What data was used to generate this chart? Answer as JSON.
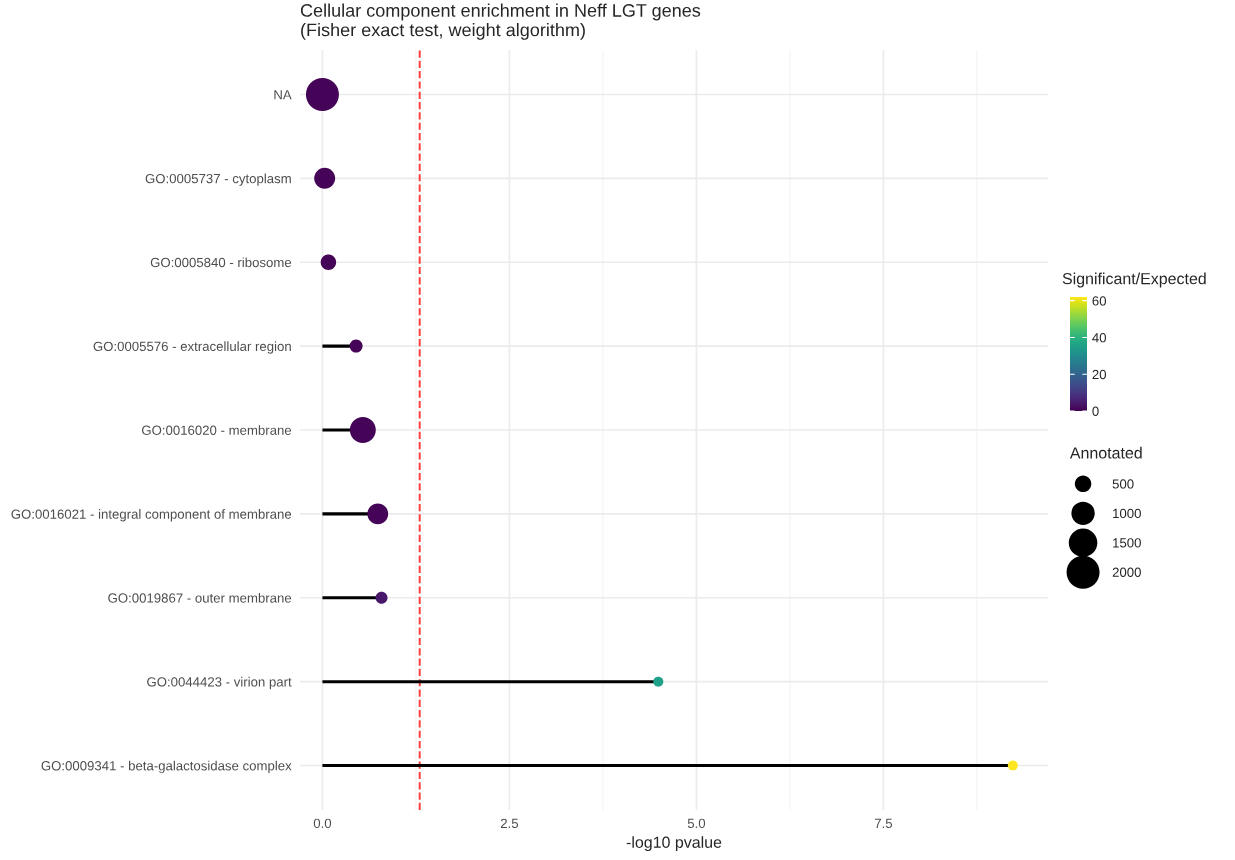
{
  "chart_data": {
    "type": "lollipop",
    "orientation": "horizontal",
    "title": "Cellular component enrichment in Neff LGT genes\n(Fisher exact test, weight algorithm)",
    "xlabel": "-log10 pvalue",
    "categories": [
      "NA",
      "GO:0005737 - cytoplasm",
      "GO:0005840 - ribosome",
      "GO:0005576 - extracellular region",
      "GO:0016020 - membrane",
      "GO:0016021 - integral component of membrane",
      "GO:0019867 - outer membrane",
      "GO:0044423 - virion part",
      "GO:0009341 - beta-galactosidase complex"
    ],
    "values": [
      0,
      0.03,
      0.08,
      0.45,
      0.54,
      0.74,
      0.79,
      4.49,
      9.23
    ],
    "cvalues": [
      0.5,
      0.5,
      0.5,
      0.5,
      0.5,
      0.5,
      4,
      35,
      62
    ],
    "sizes": [
      2000,
      810,
      440,
      310,
      1240,
      790,
      265,
      185,
      185
    ],
    "size_legend": [
      500,
      1000,
      1500,
      2000
    ],
    "legend_title": "Annotated",
    "clabel": "Significant/Expected",
    "clim": [
      0,
      62
    ],
    "cticks": [
      0,
      20,
      40,
      60
    ],
    "xlim": [
      -0.3,
      9.7
    ],
    "xticks": [
      {
        "value": 0,
        "label": "0.0"
      },
      {
        "value": 2.5,
        "label": "2.5"
      },
      {
        "value": 5,
        "label": "5.0"
      },
      {
        "value": 7.5,
        "label": "7.5"
      }
    ],
    "ref_lines": [
      {
        "axis": "x",
        "value": 1.3,
        "color": "#ff3b3b",
        "line_style": "dashed"
      }
    ],
    "grid": true
  }
}
